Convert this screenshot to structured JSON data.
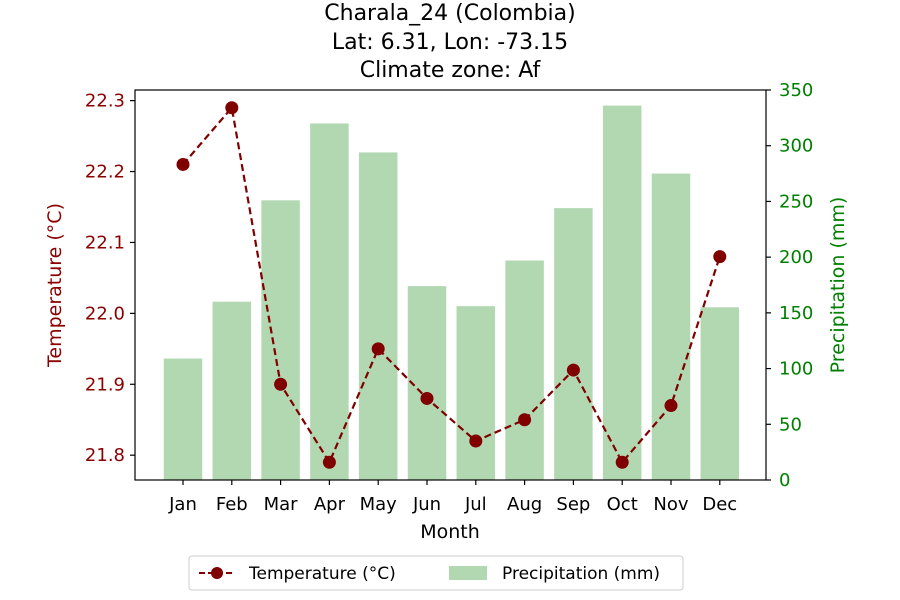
{
  "chart_data": {
    "type": "bar+line",
    "title_lines": [
      "Charala_24 (Colombia)",
      "Lat: 6.31, Lon: -73.15",
      "Climate zone: Af"
    ],
    "xlabel": "Month",
    "categories": [
      "Jan",
      "Feb",
      "Mar",
      "Apr",
      "May",
      "Jun",
      "Jul",
      "Aug",
      "Sep",
      "Oct",
      "Nov",
      "Dec"
    ],
    "temperature": {
      "name": "Temperature (°C)",
      "axis_label": "Temperature (°C)",
      "values": [
        22.21,
        22.29,
        21.9,
        21.79,
        21.95,
        21.88,
        21.82,
        21.85,
        21.92,
        21.79,
        21.87,
        22.08
      ],
      "ylim": [
        21.765,
        22.315
      ],
      "ticks": [
        21.8,
        21.9,
        22.0,
        22.1,
        22.2,
        22.3
      ],
      "tick_labels": [
        "21.8",
        "21.9",
        "22.0",
        "22.1",
        "22.2",
        "22.3"
      ],
      "line_color": "#800000",
      "marker_color": "#800000",
      "axis_color": "#8b0000"
    },
    "precipitation": {
      "name": "Precipitation (mm)",
      "axis_label": "Precipitation (mm)",
      "values": [
        109,
        160,
        251,
        320,
        294,
        174,
        156,
        197,
        244,
        336,
        275,
        155
      ],
      "ylim": [
        0,
        350
      ],
      "ticks": [
        0,
        50,
        100,
        150,
        200,
        250,
        300,
        350
      ],
      "tick_labels": [
        "0",
        "50",
        "100",
        "150",
        "200",
        "250",
        "300",
        "350"
      ],
      "bar_color": "#b2d8b2",
      "axis_color": "#008000"
    },
    "legend": {
      "placement": "below",
      "entries": [
        "Temperature (°C)",
        "Precipitation (mm)"
      ]
    },
    "grid": false
  }
}
